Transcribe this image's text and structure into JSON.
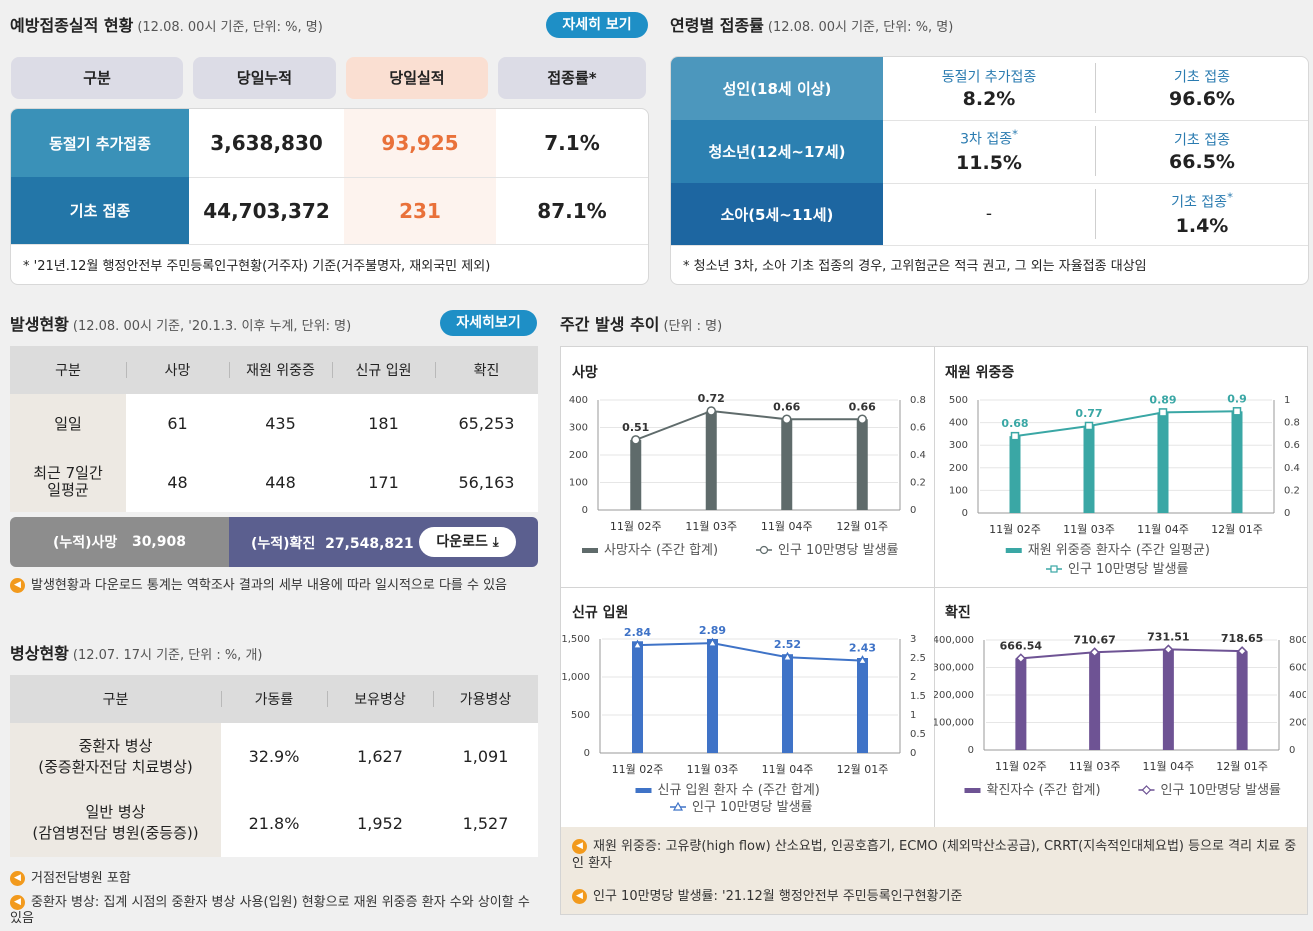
{
  "vacc": {
    "title": "예방접종실적 현황",
    "subtitle": "(12.08. 00시 기준, 단위: %, 명)",
    "detail_btn": "자세히 보기",
    "headers": [
      "구분",
      "당일누적",
      "당일실적",
      "접종률*"
    ],
    "rows": [
      {
        "label": "동절기 추가접종",
        "cum": "3,638,830",
        "today": "93,925",
        "rate": "7.1%"
      },
      {
        "label": "기초 접종",
        "cum": "44,703,372",
        "today": "231",
        "rate": "87.1%"
      }
    ],
    "note": "* '21년.12월 행정안전부 주민등록인구현황(거주자) 기준(거주불명자, 재외국민 제외)"
  },
  "age": {
    "title": "연령별 접종률",
    "subtitle": "(12.08. 00시 기준, 단위: %, 명)",
    "rows": [
      {
        "label": "성인(18세 이상)",
        "c1_label": "동절기 추가접종",
        "c1_star": "",
        "c1_value": "8.2%",
        "c2_label": "기초 접종",
        "c2_star": "",
        "c2_value": "96.6%"
      },
      {
        "label": "청소년(12세~17세)",
        "c1_label": "3차 접종",
        "c1_star": "*",
        "c1_value": "11.5%",
        "c2_label": "기초 접종",
        "c2_star": "",
        "c2_value": "66.5%"
      },
      {
        "label": "소아(5세~11세)",
        "c1_label": "",
        "c1_star": "",
        "c1_value": "-",
        "c2_label": "기초 접종",
        "c2_star": "*",
        "c2_value": "1.4%"
      }
    ],
    "note": "* 청소년 3차, 소아 기초 접종의 경우, 고위험군은 적극 권고, 그 외는 자율접종 대상임"
  },
  "occur": {
    "title": "발생현황",
    "subtitle": "(12.08. 00시 기준, '20.1.3. 이후 누계, 단위: 명)",
    "detail_btn": "자세히보기",
    "headers": [
      "구분",
      "사망",
      "재원 위중증",
      "신규 입원",
      "확진"
    ],
    "rows": [
      {
        "label": "일일",
        "values": [
          "61",
          "435",
          "181",
          "65,253"
        ]
      },
      {
        "label": "최근 7일간 일평균",
        "values": [
          "48",
          "448",
          "171",
          "56,163"
        ]
      }
    ],
    "cum_death_label": "(누적)사망",
    "cum_death_value": "30,908",
    "cum_conf_label": "(누적)확진",
    "cum_conf_value": "27,548,821",
    "download_btn": "다운로드",
    "note": "발생현황과 다운로드 통계는 역학조사 결과의 세부 내용에 따라 일시적으로 다를 수 있음"
  },
  "bed": {
    "title": "병상현황",
    "subtitle": "(12.07. 17시 기준, 단위 : %, 개)",
    "headers": [
      "구분",
      "가동률",
      "보유병상",
      "가용병상"
    ],
    "rows": [
      {
        "label1": "중환자 병상",
        "label2": "(중증환자전담 치료병상)",
        "values": [
          "32.9%",
          "1,627",
          "1,091"
        ]
      },
      {
        "label1": "일반 병상",
        "label2": "(감염병전담 병원(중등증))",
        "values": [
          "21.8%",
          "1,952",
          "1,527"
        ]
      }
    ],
    "notes": [
      "거점전담병원 포함",
      "중환자 병상: 집계 시점의 중환자 병상 사용(입원) 현황으로 재원 위중증 환자 수와 상이할 수 있음"
    ]
  },
  "weekly": {
    "title": "주간 발생 추이",
    "subtitle": "(단위 : 명)",
    "notes": [
      "재원 위중증: 고유량(high flow) 산소요법, 인공호흡기, ECMO (체외막산소공급), CRRT(지속적인대체요법) 등으로 격리 치료 중인 환자",
      "인구 10만명당 발생률: '21.12월 행정안전부 주민등록인구현황기준"
    ]
  },
  "chart_data": [
    {
      "type": "bar",
      "title": "사망",
      "categories": [
        "11월 02주",
        "11월 03주",
        "11월 04주",
        "12월 01주"
      ],
      "series": [
        {
          "name": "사망자수 (주간 합계)",
          "type": "bar",
          "axis": "left",
          "values": [
            255,
            358,
            330,
            330
          ]
        },
        {
          "name": "인구 10만명당 발생률",
          "type": "line",
          "axis": "right",
          "values": [
            0.51,
            0.72,
            0.66,
            0.66
          ],
          "labels": [
            "0.51",
            "0.72",
            "0.66",
            "0.66"
          ]
        }
      ],
      "ylim": [
        0,
        400
      ],
      "y_ticks": [
        "0",
        "100",
        "200",
        "300",
        "400"
      ],
      "y2lim": [
        0,
        0.8
      ],
      "y2_ticks": [
        "0",
        "0.2",
        "0.4",
        "0.6",
        "0.8"
      ],
      "colors": {
        "bar": "#5f6b6b",
        "line": "#5f6b6b"
      }
    },
    {
      "type": "bar",
      "title": "재원 위중증",
      "categories": [
        "11월 02주",
        "11월 03주",
        "11월 04주",
        "12월 01주"
      ],
      "series": [
        {
          "name": "재원 위중증 환자수 (주간 일평균)",
          "type": "bar",
          "axis": "left",
          "values": [
            340,
            385,
            445,
            450
          ]
        },
        {
          "name": "인구 10만명당 발생률",
          "type": "line",
          "axis": "right",
          "values": [
            0.68,
            0.77,
            0.89,
            0.9
          ],
          "labels": [
            "0.68",
            "0.77",
            "0.89",
            "0.9"
          ]
        }
      ],
      "ylim": [
        0,
        500
      ],
      "y_ticks": [
        "0",
        "100",
        "200",
        "300",
        "400",
        "500"
      ],
      "y2lim": [
        0,
        1
      ],
      "y2_ticks": [
        "0",
        "0.2",
        "0.4",
        "0.6",
        "0.8",
        "1"
      ],
      "colors": {
        "bar": "#3aa7a5",
        "line": "#3aa7a5"
      }
    },
    {
      "type": "bar",
      "title": "신규 입원",
      "categories": [
        "11월 02주",
        "11월 03주",
        "11월 04주",
        "12월 01주"
      ],
      "series": [
        {
          "name": "신규 입원 환자 수 (주간 합계)",
          "type": "bar",
          "axis": "left",
          "values": [
            1470,
            1500,
            1300,
            1250
          ]
        },
        {
          "name": "인구 10만명당 발생률",
          "type": "line",
          "axis": "right",
          "values": [
            2.84,
            2.89,
            2.52,
            2.43
          ],
          "labels": [
            "2.84",
            "2.89",
            "2.52",
            "2.43"
          ]
        }
      ],
      "ylim": [
        0,
        1500
      ],
      "y_ticks": [
        "0",
        "500",
        "1,000",
        "1,500"
      ],
      "y2lim": [
        0,
        3
      ],
      "y2_ticks": [
        "0",
        "0.5",
        "1",
        "1.5",
        "2",
        "2.5",
        "3"
      ],
      "colors": {
        "bar": "#3f73c7",
        "line": "#3f73c7"
      }
    },
    {
      "type": "bar",
      "title": "확진",
      "categories": [
        "11월 02주",
        "11월 03주",
        "11월 04주",
        "12월 01주"
      ],
      "series": [
        {
          "name": "확진자수 (주간 합계)",
          "type": "bar",
          "axis": "left",
          "values": [
            333000,
            355000,
            366000,
            359000
          ]
        },
        {
          "name": "인구 10만명당 발생률",
          "type": "line",
          "axis": "right",
          "values": [
            666.54,
            710.67,
            731.51,
            718.65
          ],
          "labels": [
            "666.54",
            "710.67",
            "731.51",
            "718.65"
          ]
        }
      ],
      "ylim": [
        0,
        400000
      ],
      "y_ticks": [
        "0",
        "100,000",
        "200,000",
        "300,000",
        "400,000"
      ],
      "y2lim": [
        0,
        800
      ],
      "y2_ticks": [
        "0",
        "200",
        "400",
        "600",
        "800"
      ],
      "colors": {
        "bar": "#6e5394",
        "line": "#6e5394"
      }
    }
  ]
}
